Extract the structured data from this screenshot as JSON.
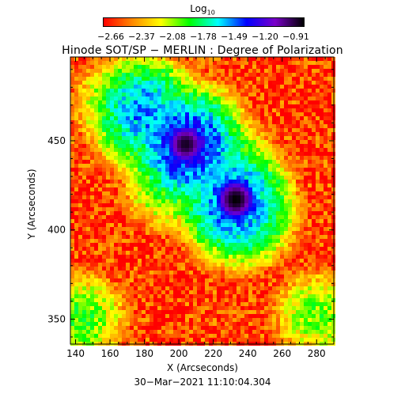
{
  "colorbar": {
    "label_base": "Log",
    "label_sub": "10",
    "ticks": [
      "−2.66",
      "−2.37",
      "−2.08",
      "−1.78",
      "−1.49",
      "−1.20",
      "−0.91"
    ],
    "range": [
      -2.66,
      -0.91
    ],
    "colors": [
      "#ff0000",
      "#ff8800",
      "#ffff00",
      "#00ff00",
      "#00ffff",
      "#0000ff",
      "#7a00c8",
      "#000000"
    ]
  },
  "title": "Hinode SOT/SP − MERLIN : Degree of Polarization",
  "timestamp": "30−Mar−2021 11:10:04.304",
  "chart_data": {
    "type": "heatmap",
    "title": "Hinode SOT/SP − MERLIN : Degree of Polarization",
    "xlabel": "X (Arcseconds)",
    "ylabel": "Y (Arcseconds)",
    "xlim": [
      137,
      290
    ],
    "ylim": [
      336,
      497
    ],
    "xticks": [
      140,
      160,
      180,
      200,
      220,
      240,
      260,
      280
    ],
    "yticks": [
      350,
      400,
      450
    ],
    "value_scale": "log10",
    "value_range": [
      -2.66,
      -0.91
    ],
    "background_level": -2.55,
    "features": [
      {
        "x": 180,
        "y": 466,
        "level": -1.55
      },
      {
        "x": 187,
        "y": 455,
        "level": -1.7
      },
      {
        "x": 205,
        "y": 447,
        "level": -1.35
      },
      {
        "x": 212,
        "y": 436,
        "level": -1.75
      },
      {
        "x": 225,
        "y": 433,
        "level": -1.7
      },
      {
        "x": 232,
        "y": 416,
        "level": -1.45
      },
      {
        "x": 236,
        "y": 410,
        "level": -1.6
      },
      {
        "x": 196,
        "y": 428,
        "level": -1.85
      },
      {
        "x": 167,
        "y": 470,
        "level": -1.9
      },
      {
        "x": 144,
        "y": 350,
        "level": -1.95
      },
      {
        "x": 280,
        "y": 352,
        "level": -2.0
      }
    ],
    "peaks": [
      {
        "x": 204,
        "y": 448,
        "level": -0.95
      },
      {
        "x": 233,
        "y": 417,
        "level": -0.91
      }
    ]
  }
}
